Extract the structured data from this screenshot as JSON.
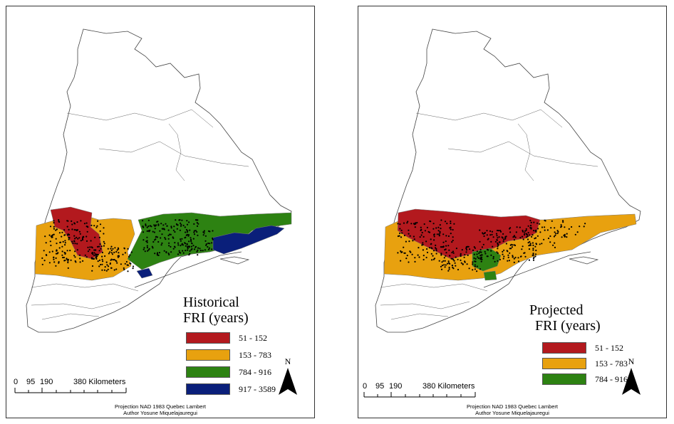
{
  "maps": [
    {
      "legend_title": [
        "Historical",
        "FRI (years)"
      ],
      "classes": [
        {
          "label": "51 - 152",
          "color": "#b3191e"
        },
        {
          "label": "153 - 783",
          "color": "#e8a10f"
        },
        {
          "label": "784 - 916",
          "color": "#2d8212"
        },
        {
          "label": "917 - 3589",
          "color": "#0a1f7a"
        }
      ],
      "scale_labels": [
        "0",
        "95",
        "190",
        "380 Kilometers"
      ],
      "projection": "Projection NAD 1983 Quebec Lambert",
      "author": "Author Yosune Miquelajauregui",
      "north": "N"
    },
    {
      "legend_title": [
        "Projected",
        "FRI (years)"
      ],
      "classes": [
        {
          "label": "51 - 152",
          "color": "#b3191e"
        },
        {
          "label": "153 - 783",
          "color": "#e8a10f"
        },
        {
          "label": "784 - 916",
          "color": "#2d8212"
        }
      ],
      "scale_labels": [
        "0",
        "95",
        "190",
        "380 Kilometers"
      ],
      "projection": "Projection NAD 1983 Quebec Lambert",
      "author": "Author Yosune Miquelajauregui",
      "north": "N"
    }
  ]
}
